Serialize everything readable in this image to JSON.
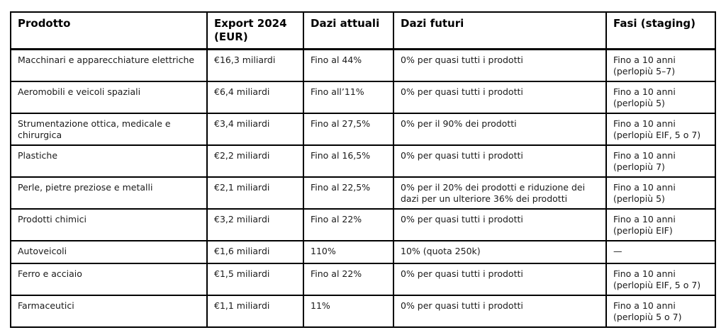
{
  "chart_data": {
    "type": "table",
    "title": "",
    "columns": [
      "Prodotto",
      "Export 2024 (EUR)",
      "Dazi attuali",
      "Dazi futuri",
      "Fasi (staging)"
    ],
    "rows": [
      [
        "Macchinari e apparecchiature elettriche",
        "€16,3 miliardi",
        "Fino al 44%",
        "0% per quasi tutti i prodotti",
        "Fino a 10 anni (perlopiù 5–7)"
      ],
      [
        "Aeromobili e veicoli spaziali",
        "€6,4 miliardi",
        "Fino all’11%",
        "0% per quasi tutti i prodotti",
        "Fino a 10 anni (perlopiù 5)"
      ],
      [
        "Strumentazione ottica, medicale e chirurgica",
        "€3,4 miliardi",
        "Fino al 27,5%",
        "0% per il 90% dei prodotti",
        "Fino a 10 anni (perlopiù EIF, 5 o 7)"
      ],
      [
        "Plastiche",
        "€2,2 miliardi",
        "Fino al 16,5%",
        "0% per quasi tutti i prodotti",
        "Fino a 10 anni (perlopiù 7)"
      ],
      [
        "Perle, pietre preziose e metalli",
        "€2,1 miliardi",
        "Fino al 22,5%",
        "0% per il 20% dei prodotti e riduzione dei dazi per un ulteriore 36% dei prodotti",
        "Fino a 10 anni (perlopiù 5)"
      ],
      [
        "Prodotti chimici",
        "€3,2 miliardi",
        "Fino al 22%",
        "0% per quasi tutti i prodotti",
        "Fino a 10 anni (perlopiù EIF)"
      ],
      [
        "Autoveicoli",
        "€1,6 miliardi",
        "110%",
        "10% (quota 250k)",
        "—"
      ],
      [
        "Ferro e acciaio",
        "€1,5 miliardi",
        "Fino al 22%",
        "0% per quasi tutti i prodotti",
        "Fino a 10 anni (perlopiù EIF, 5 o 7)"
      ],
      [
        "Farmaceutici",
        "€1,1 miliardi",
        "11%",
        "0% per quasi tutti i prodotti",
        "Fino a 10 anni (perlopiù 5 o 7)"
      ]
    ],
    "layout": {
      "border_color": "#000000",
      "background_color": "#ffffff",
      "header_bold": true,
      "grid": "full"
    }
  }
}
